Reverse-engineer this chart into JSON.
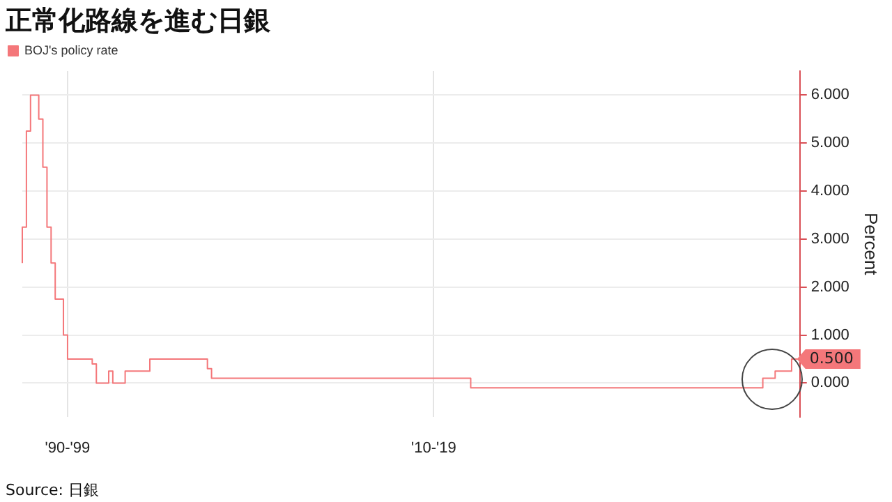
{
  "chart_data": {
    "type": "step",
    "title": "正常化路線を進む日銀",
    "ylabel": "Percent",
    "annotations": [
      "Source: 日銀"
    ],
    "categories": [
      null,
      null,
      null,
      null,
      null,
      null,
      null,
      null,
      null,
      null,
      null,
      "'90-'99",
      null,
      null,
      null,
      null,
      null,
      null,
      null,
      null,
      null,
      null,
      null,
      null,
      null,
      null,
      null,
      null,
      null,
      null,
      null,
      null,
      null,
      null,
      null,
      null,
      null,
      null,
      null,
      null,
      null,
      null,
      null,
      null,
      null,
      null,
      null,
      null,
      null,
      null,
      null,
      null,
      null,
      null,
      null,
      null,
      null,
      null,
      null,
      null,
      null,
      null,
      null,
      null,
      null,
      null,
      null,
      null,
      null,
      null,
      null,
      null,
      null,
      null,
      null,
      null,
      null,
      null,
      null,
      null,
      null,
      null,
      null,
      null,
      null,
      null,
      null,
      null,
      null,
      null,
      null,
      null,
      null,
      null,
      null,
      null,
      null,
      null,
      null,
      null,
      "'10-'19",
      null,
      null,
      null,
      null,
      null,
      null,
      null,
      null,
      null,
      null,
      null,
      null,
      null,
      null,
      null,
      null,
      null,
      null,
      null,
      null,
      null,
      null,
      null,
      null,
      null,
      null,
      null,
      null,
      null,
      null,
      null,
      null,
      null,
      null,
      null,
      null,
      null,
      null,
      null,
      null,
      null,
      null,
      null,
      null,
      null,
      null,
      null,
      null,
      null,
      null,
      null,
      null,
      null,
      null,
      null,
      null,
      null,
      null,
      null,
      null,
      null,
      null,
      null,
      null,
      null,
      null,
      null,
      null,
      null,
      null,
      null,
      null,
      null,
      null,
      null,
      null,
      null,
      null,
      null,
      null,
      null,
      null,
      null,
      null,
      null,
      null,
      null,
      null,
      null
    ],
    "series": [
      {
        "name": "BOJ's policy rate",
        "color": "#f4777a",
        "values": [
          2.5,
          3.25,
          5.25,
          6.0,
          6.0,
          5.5,
          4.5,
          3.25,
          2.5,
          1.75,
          1.75,
          1.0,
          0.5,
          0.5,
          0.5,
          0.5,
          0.5,
          0.5,
          0.4,
          0,
          0,
          0,
          0.25,
          0,
          0,
          0,
          0.25,
          0.25,
          0.25,
          0.25,
          0.25,
          0.25,
          0.5,
          0.5,
          0.5,
          0.5,
          0.5,
          0.5,
          0.5,
          0.5,
          0.5,
          0.5,
          0.5,
          0.5,
          0.5,
          0.5,
          0.3,
          0.1,
          0.1,
          0.1,
          0.1,
          0.1,
          0.1,
          0.1,
          0.1,
          0.1,
          0.1,
          0.1,
          0.1,
          0.1,
          0.1,
          0.1,
          0.1,
          0.1,
          0.1,
          0.1,
          0.1,
          0.1,
          0.1,
          0.1,
          0.1,
          0.1,
          0.1,
          0.1,
          0.1,
          0.1,
          0.1,
          0.1,
          0.1,
          0.1,
          0.1,
          0.1,
          0.1,
          0.1,
          0.1,
          0.1,
          0.1,
          0.1,
          0.1,
          0.1,
          0.1,
          0.1,
          0.1,
          0.1,
          0.1,
          0.1,
          0.1,
          0.1,
          0.1,
          0.1,
          0.1,
          0.1,
          0.1,
          0.1,
          0.1,
          0.1,
          0.1,
          0.1,
          0.1,
          0.1,
          -0.1,
          -0.1,
          -0.1,
          -0.1,
          -0.1,
          -0.1,
          -0.1,
          -0.1,
          -0.1,
          -0.1,
          -0.1,
          -0.1,
          -0.1,
          -0.1,
          -0.1,
          -0.1,
          -0.1,
          -0.1,
          -0.1,
          -0.1,
          -0.1,
          -0.1,
          -0.1,
          -0.1,
          -0.1,
          -0.1,
          -0.1,
          -0.1,
          -0.1,
          -0.1,
          -0.1,
          -0.1,
          -0.1,
          -0.1,
          -0.1,
          -0.1,
          -0.1,
          -0.1,
          -0.1,
          -0.1,
          -0.1,
          -0.1,
          -0.1,
          -0.1,
          -0.1,
          -0.1,
          -0.1,
          -0.1,
          -0.1,
          -0.1,
          -0.1,
          -0.1,
          -0.1,
          -0.1,
          -0.1,
          -0.1,
          -0.1,
          -0.1,
          -0.1,
          -0.1,
          -0.1,
          -0.1,
          -0.1,
          -0.1,
          -0.1,
          -0.1,
          -0.1,
          -0.1,
          -0.1,
          -0.1,
          -0.1,
          0.1,
          0.1,
          0.1,
          0.25,
          0.25,
          0.25,
          0.25,
          0.5,
          0.5
        ],
        "value_labels": [
          null,
          null,
          null,
          null,
          null,
          null,
          null,
          null,
          null,
          null,
          null,
          null,
          null,
          null,
          null,
          null,
          null,
          null,
          null,
          null,
          null,
          null,
          null,
          null,
          null,
          null,
          null,
          null,
          null,
          null,
          null,
          null,
          null,
          null,
          null,
          null,
          null,
          null,
          null,
          null,
          null,
          null,
          null,
          null,
          null,
          null,
          null,
          null,
          null,
          null,
          null,
          null,
          null,
          null,
          null,
          null,
          null,
          null,
          null,
          null,
          null,
          null,
          null,
          null,
          null,
          null,
          null,
          null,
          null,
          null,
          null,
          null,
          null,
          null,
          null,
          null,
          null,
          null,
          null,
          null,
          null,
          null,
          null,
          null,
          null,
          null,
          null,
          null,
          null,
          null,
          null,
          null,
          null,
          null,
          null,
          null,
          null,
          null,
          null,
          null,
          null,
          null,
          null,
          null,
          null,
          null,
          null,
          null,
          null,
          null,
          null,
          null,
          null,
          null,
          null,
          null,
          null,
          null,
          null,
          null,
          null,
          null,
          null,
          null,
          null,
          null,
          null,
          null,
          null,
          null,
          null,
          null,
          null,
          null,
          null,
          null,
          null,
          null,
          null,
          null,
          null,
          null,
          null,
          null,
          null,
          null,
          null,
          null,
          null,
          null,
          null,
          null,
          null,
          null,
          null,
          null,
          null,
          null,
          null,
          null,
          null,
          null,
          null,
          null,
          null,
          null,
          null,
          null,
          null,
          null,
          null,
          null,
          null,
          null,
          null,
          null,
          null,
          null,
          null,
          null,
          null,
          null,
          null,
          null,
          null,
          null,
          null,
          null,
          null,
          "0.500"
        ]
      }
    ],
    "ylim": [
      -0.7,
      6.5
    ],
    "yticks": [
      {
        "value": 0,
        "label": "0.000"
      },
      {
        "value": 1,
        "label": "1.000"
      },
      {
        "value": 2,
        "label": "2.000"
      },
      {
        "value": 3,
        "label": "3.000"
      },
      {
        "value": 4,
        "label": "4.000"
      },
      {
        "value": 5,
        "label": "5.000"
      },
      {
        "value": 6,
        "label": "6.000"
      }
    ],
    "grid": true,
    "legend": "top left"
  }
}
